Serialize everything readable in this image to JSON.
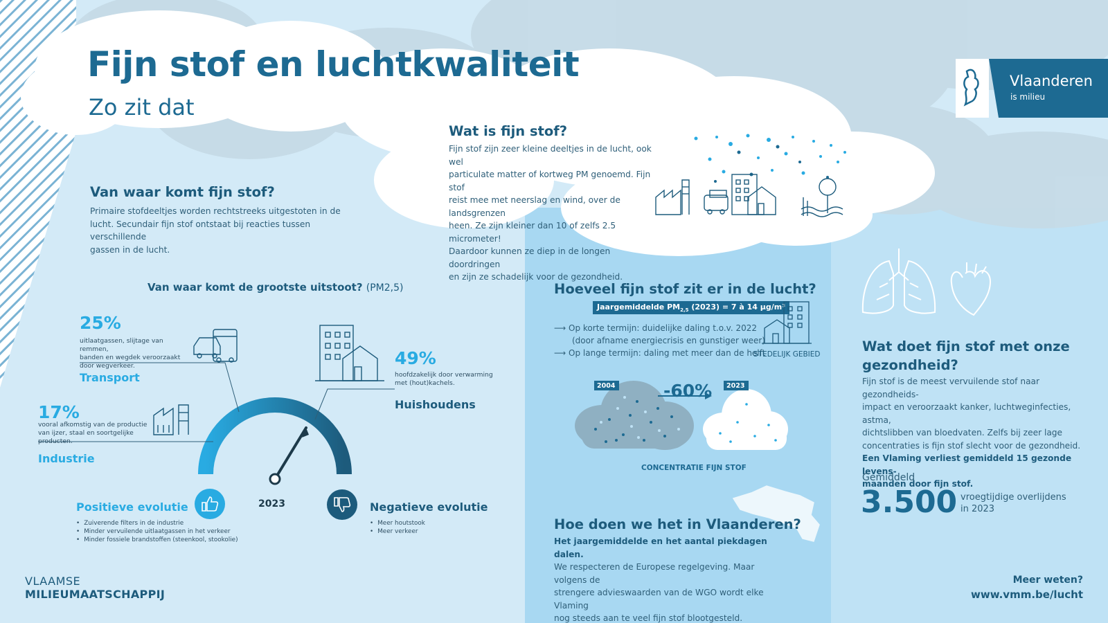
{
  "header": {
    "title": "Fijn stof en luchtkwaliteit",
    "subtitle": "Zo zit dat"
  },
  "logo": {
    "name": "Vlaanderen",
    "tagline": "is milieu"
  },
  "what_is": {
    "heading": "Wat is fijn stof?",
    "lines": [
      "Fijn stof zijn zeer kleine deeltjes in de lucht, ook wel",
      "particulate matter of kortweg PM genoemd. Fijn stof",
      "reist mee met neerslag en wind, over de landsgrenzen",
      "heen. Ze zijn kleiner dan 10 of zelfs 2.5 micrometer!",
      "Daardoor kunnen ze diep in de longen doordringen",
      "en zijn ze schadelijk voor de gezondheid."
    ]
  },
  "origin": {
    "heading": "Van waar komt fijn stof?",
    "lines": [
      "Primaire stofdeeltjes worden rechtstreeks uitgestoten in de",
      "lucht. Secundair fijn stof ontstaat bij reacties tussen verschillende",
      "gassen in de lucht."
    ]
  },
  "emissions": {
    "heading": "Van waar komt de grootste uitstoot?",
    "heading_suffix": "(PM2,5)",
    "year": "2023",
    "sources": [
      {
        "percent": "25%",
        "label": "Transport",
        "desc": [
          "uitlaatgassen, slijtage van remmen,",
          "banden en wegdek veroorzaakt",
          "door wegverkeer."
        ]
      },
      {
        "percent": "17%",
        "label": "Industrie",
        "desc": [
          "vooral afkomstig van de productie",
          "van ijzer, staal en soortgelijke",
          "producten."
        ]
      },
      {
        "percent": "49%",
        "label": "Huishoudens",
        "desc": [
          "hoofdzakelijk door verwarming",
          "met (hout)kachels."
        ]
      }
    ],
    "positive": {
      "title": "Positieve evolutie",
      "items": [
        "Zuiverende filters in de industrie",
        "Minder vervuilende uitlaatgassen in het verkeer",
        "Minder fossiele brandstoffen (steenkool, stookolie)"
      ]
    },
    "negative": {
      "title": "Negatieve evolutie",
      "items": [
        "Meer houtstook",
        "Meer verkeer"
      ]
    }
  },
  "amount": {
    "heading": "Hoeveel fijn stof zit er in de lucht?",
    "badge_pre": "Jaargemiddelde PM",
    "badge_sub": "2,5",
    "badge_post": " (2023) = 7 à 14 µg/m³",
    "short_term_1": "Op korte termijn: duidelijke daling t.o.v. 2022",
    "short_term_2": "(door afname energiecrisis en gunstiger weer)",
    "long_term": "Op lange termijn: daling met meer dan de helft",
    "urban": "STEDELIJK GEBIED",
    "year_from": "2004",
    "year_to": "2023",
    "reduction": "-60%",
    "caption": "CONCENTRATIE FIJN STOF"
  },
  "flanders": {
    "heading": "Hoe doen we het in Vlaanderen?",
    "lead": "Het jaargemiddelde en het aantal piekdagen dalen.",
    "lines": [
      "We respecteren de Europese regelgeving. Maar volgens de",
      "strengere advieswaarden van de WGO wordt elke Vlaming",
      "nog steeds aan te veel fijn stof blootgesteld."
    ]
  },
  "health": {
    "heading_1": "Wat doet fijn stof met onze",
    "heading_2": "gezondheid?",
    "lines": [
      "Fijn stof is de meest vervuilende stof naar gezondheids-",
      "impact en veroorzaakt kanker, luchtweginfecties, astma,",
      "dichtslibben van bloedvaten. Zelfs bij zeer lage",
      "concentraties is fijn stof slecht voor de gezondheid."
    ],
    "bold_lines": [
      "Een Vlaming verliest gemiddeld 15 gezonde levens-",
      "maanden door fijn stof."
    ],
    "avg_label": "Gemiddeld",
    "big_number": "3.500",
    "deaths_1": "vroegtijdige overlijdens",
    "deaths_2": "in 2023"
  },
  "footer": {
    "org_1": "VLAAMSE",
    "org_2": "MILIEUMAATSCHAPPIJ",
    "more": "Meer weten?",
    "url": "www.vmm.be/lucht"
  }
}
